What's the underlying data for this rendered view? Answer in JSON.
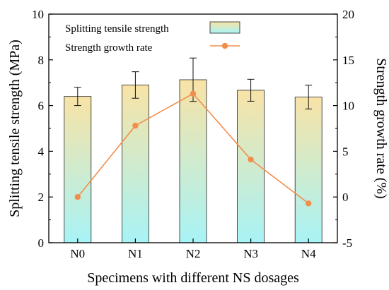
{
  "chart_data": {
    "type": "bar",
    "categories": [
      "N0",
      "N1",
      "N2",
      "N3",
      "N4"
    ],
    "xlabel": "Specimens with different NS dosages",
    "y_left": {
      "label": "Splitting tensile strength (MPa)",
      "lim": [
        0,
        10
      ],
      "ticks": [
        0,
        2,
        4,
        6,
        8,
        10
      ]
    },
    "y_right": {
      "label": "Strength growth rate (%)",
      "lim": [
        -5,
        20
      ],
      "ticks": [
        -5,
        0,
        5,
        10,
        15,
        20
      ]
    },
    "series": [
      {
        "name": "Splitting tensile strength",
        "kind": "bar",
        "axis": "left",
        "values": [
          6.4,
          6.9,
          7.13,
          6.67,
          6.37
        ],
        "error": [
          0.4,
          0.58,
          0.95,
          0.48,
          0.52
        ],
        "gradient_top": "#f8e3a6",
        "gradient_bottom": "#a8f3f6"
      },
      {
        "name": "Strength growth rate",
        "kind": "line",
        "axis": "right",
        "values": [
          0,
          7.8,
          11.3,
          4.1,
          -0.7
        ],
        "color": "#f28e4c"
      }
    ],
    "legend_position": "top-center",
    "grid": false
  }
}
